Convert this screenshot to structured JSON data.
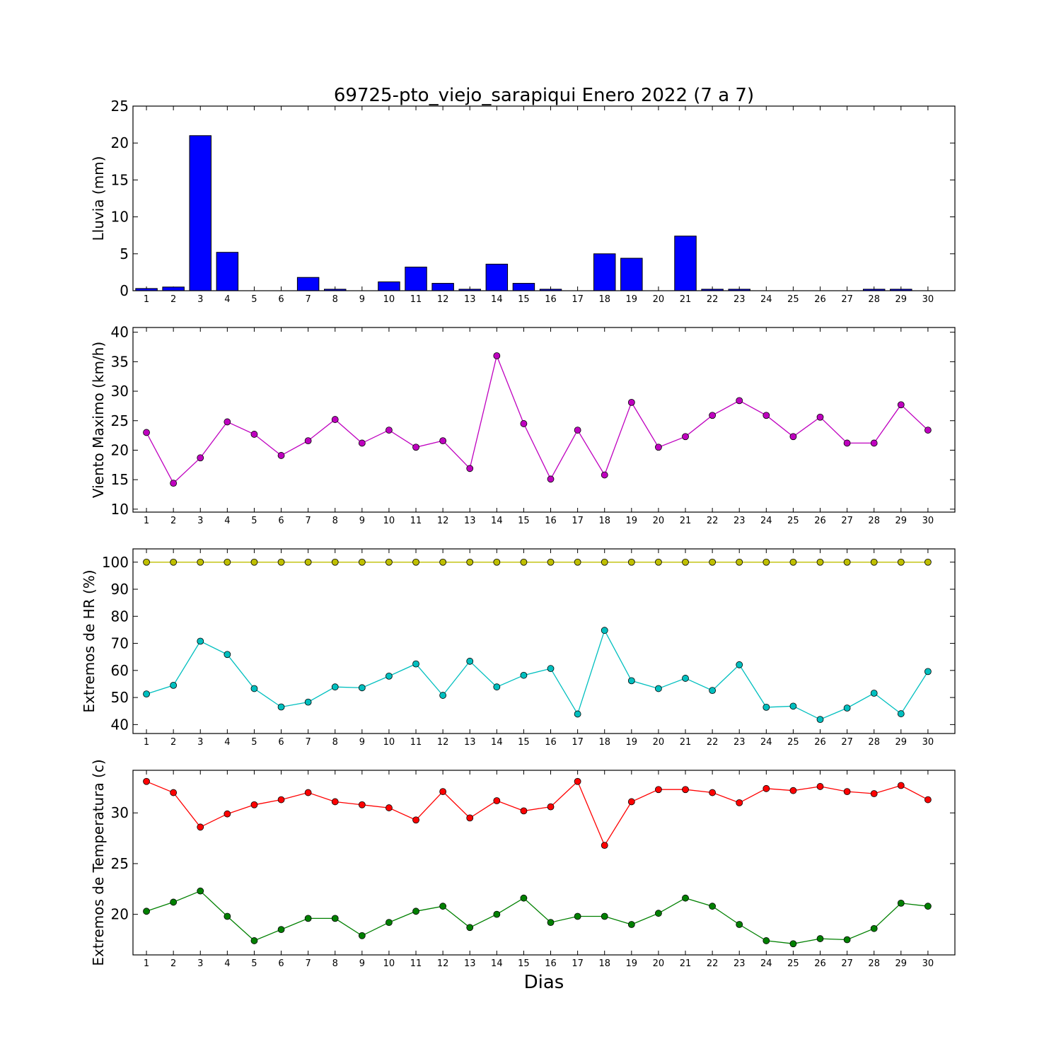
{
  "title": "69725-pto_viejo_sarapiqui Enero 2022  (7 a 7)",
  "xlabel": "Dias",
  "chart_data": [
    {
      "type": "bar",
      "ylabel": "Lluvia (mm)",
      "ylim": [
        0,
        25
      ],
      "yticks": [
        0,
        5,
        10,
        15,
        20,
        25
      ],
      "categories": [
        "1",
        "2",
        "3",
        "4",
        "5",
        "6",
        "7",
        "8",
        "9",
        "10",
        "11",
        "12",
        "13",
        "14",
        "15",
        "16",
        "17",
        "18",
        "19",
        "20",
        "21",
        "22",
        "23",
        "24",
        "25",
        "26",
        "27",
        "28",
        "29",
        "30"
      ],
      "series": [
        {
          "color": "#0000ff",
          "values": [
            0.3,
            0.5,
            21.0,
            5.2,
            0,
            0,
            1.8,
            0.2,
            0,
            1.2,
            3.2,
            1.0,
            0.2,
            3.6,
            1.0,
            0.2,
            0,
            5.0,
            4.4,
            0,
            7.4,
            0.2,
            0.2,
            0,
            0,
            0,
            0,
            0.2,
            0.2,
            0
          ]
        }
      ]
    },
    {
      "type": "line",
      "ylabel": "Viento Maximo (km/h)",
      "ylim": [
        9.5,
        40.8
      ],
      "yticks": [
        10,
        15,
        20,
        25,
        30,
        35,
        40
      ],
      "categories": [
        "1",
        "2",
        "3",
        "4",
        "5",
        "6",
        "7",
        "8",
        "9",
        "10",
        "11",
        "12",
        "13",
        "14",
        "15",
        "16",
        "17",
        "18",
        "19",
        "20",
        "21",
        "22",
        "23",
        "24",
        "25",
        "26",
        "27",
        "28",
        "29",
        "30"
      ],
      "series": [
        {
          "color": "#bf00bf",
          "values": [
            23.0,
            14.4,
            18.7,
            24.8,
            22.7,
            19.1,
            21.6,
            25.2,
            21.2,
            23.4,
            20.5,
            21.6,
            16.9,
            36.0,
            24.5,
            15.1,
            23.4,
            15.8,
            28.1,
            20.5,
            22.3,
            25.9,
            28.4,
            25.9,
            22.3,
            25.6,
            21.2,
            21.2,
            27.7,
            23.4
          ]
        }
      ]
    },
    {
      "type": "line",
      "ylabel": "Extremos de HR (%)",
      "ylim": [
        36.7,
        104.9
      ],
      "yticks": [
        40,
        50,
        60,
        70,
        80,
        90,
        100
      ],
      "categories": [
        "1",
        "2",
        "3",
        "4",
        "5",
        "6",
        "7",
        "8",
        "9",
        "10",
        "11",
        "12",
        "13",
        "14",
        "15",
        "16",
        "17",
        "18",
        "19",
        "20",
        "21",
        "22",
        "23",
        "24",
        "25",
        "26",
        "27",
        "28",
        "29",
        "30"
      ],
      "series": [
        {
          "color": "#bfbf00",
          "values": [
            100,
            100,
            100,
            100,
            100,
            100,
            100,
            100,
            100,
            100,
            100,
            100,
            100,
            100,
            100,
            100,
            100,
            100,
            100,
            100,
            100,
            100,
            100,
            100,
            100,
            100,
            100,
            100,
            100,
            100
          ]
        },
        {
          "color": "#00bfbf",
          "values": [
            51.3,
            54.5,
            70.8,
            65.9,
            53.3,
            46.5,
            48.3,
            53.9,
            53.6,
            57.9,
            62.4,
            50.8,
            63.4,
            53.9,
            58.2,
            60.7,
            43.9,
            74.8,
            56.2,
            53.3,
            57.1,
            52.6,
            62.1,
            46.4,
            46.8,
            41.9,
            46.1,
            51.6,
            44.0,
            59.6
          ]
        }
      ]
    },
    {
      "type": "line",
      "ylabel": "Extremos de Temperatura (c)",
      "ylim": [
        16.0,
        34.2
      ],
      "yticks": [
        20,
        25,
        30
      ],
      "categories": [
        "1",
        "2",
        "3",
        "4",
        "5",
        "6",
        "7",
        "8",
        "9",
        "10",
        "11",
        "12",
        "13",
        "14",
        "15",
        "16",
        "17",
        "18",
        "19",
        "20",
        "21",
        "22",
        "23",
        "24",
        "25",
        "26",
        "27",
        "28",
        "29",
        "30"
      ],
      "series": [
        {
          "color": "#ff0000",
          "values": [
            33.1,
            32.0,
            28.6,
            29.9,
            30.8,
            31.3,
            32.0,
            31.1,
            30.8,
            30.5,
            29.3,
            32.1,
            29.5,
            31.2,
            30.2,
            30.6,
            33.1,
            26.8,
            31.1,
            32.3,
            32.3,
            32.0,
            31.0,
            32.4,
            32.2,
            32.6,
            32.1,
            31.9,
            32.7,
            31.3
          ]
        },
        {
          "color": "#008000",
          "values": [
            20.3,
            21.2,
            22.3,
            19.8,
            17.4,
            18.5,
            19.6,
            19.6,
            17.9,
            19.2,
            20.3,
            20.8,
            18.7,
            20.0,
            21.6,
            19.2,
            19.8,
            19.8,
            19.0,
            20.1,
            21.6,
            20.8,
            19.0,
            17.4,
            17.1,
            17.6,
            17.5,
            18.6,
            21.1,
            20.8
          ]
        }
      ]
    }
  ]
}
